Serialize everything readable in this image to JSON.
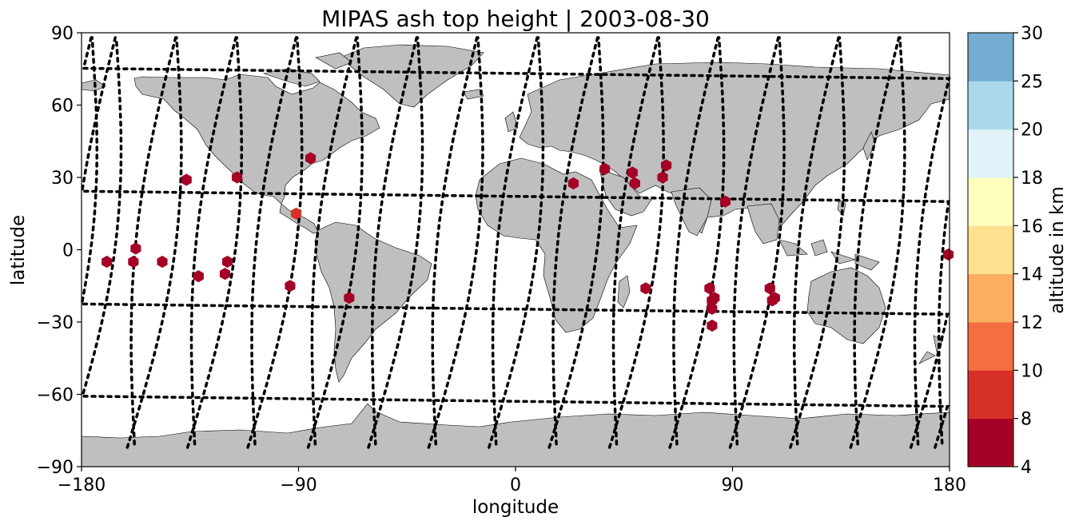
{
  "title": "MIPAS ash top height | 2003-08-30",
  "map": {
    "lon_range": [
      -180,
      180
    ],
    "lat_range": [
      -90,
      90
    ],
    "xlabel": "longitude",
    "ylabel": "latitude",
    "xticks": [
      -180,
      -90,
      0,
      90,
      180
    ],
    "yticks": [
      -90,
      -60,
      -30,
      0,
      30,
      60,
      90
    ],
    "xtick_labels": [
      "−180",
      "−90",
      "0",
      "90",
      "180"
    ],
    "ytick_labels": [
      "−90",
      "−60",
      "−30",
      "0",
      "30",
      "60",
      "90"
    ],
    "land_color": "#bfbfbf",
    "ocean_color": "#ffffff",
    "track_color": "#000000"
  },
  "colorbar": {
    "label": "altitude in km",
    "bounds": [
      4,
      8,
      10,
      12,
      14,
      16,
      18,
      20,
      25,
      30
    ],
    "tick_labels": [
      "4",
      "8",
      "10",
      "12",
      "14",
      "16",
      "18",
      "20",
      "25",
      "30"
    ],
    "colors": [
      "#a50026",
      "#d73027",
      "#f46d43",
      "#fdae61",
      "#fee090",
      "#ffffbf",
      "#e0f3f8",
      "#abd9e9",
      "#74add1",
      "#4575b4",
      "#313695"
    ]
  },
  "chart_data": {
    "type": "scatter",
    "title": "MIPAS ash top height | 2003-08-30",
    "xlabel": "longitude",
    "ylabel": "latitude",
    "xlim": [
      -180,
      180
    ],
    "ylim": [
      -90,
      90
    ],
    "colorbar_label": "altitude in km",
    "points": [
      {
        "lon": -169.5,
        "lat": -5,
        "alt": 6
      },
      {
        "lon": -158.5,
        "lat": -5,
        "alt": 6
      },
      {
        "lon": -157.5,
        "lat": 0.5,
        "alt": 6
      },
      {
        "lon": -146.5,
        "lat": -5,
        "alt": 6
      },
      {
        "lon": -136.5,
        "lat": 29,
        "alt": 6
      },
      {
        "lon": -131.5,
        "lat": -11,
        "alt": 6
      },
      {
        "lon": -120.5,
        "lat": -10,
        "alt": 6
      },
      {
        "lon": -119.5,
        "lat": -5,
        "alt": 6
      },
      {
        "lon": -115.5,
        "lat": 30,
        "alt": 6
      },
      {
        "lon": -93.5,
        "lat": -15,
        "alt": 6
      },
      {
        "lon": -91,
        "lat": 15,
        "alt": 9
      },
      {
        "lon": -85,
        "lat": 38,
        "alt": 6
      },
      {
        "lon": -69,
        "lat": -20,
        "alt": 6
      },
      {
        "lon": 24,
        "lat": 27.5,
        "alt": 6
      },
      {
        "lon": 37,
        "lat": 33.5,
        "alt": 6
      },
      {
        "lon": 48.5,
        "lat": 32,
        "alt": 6
      },
      {
        "lon": 49.5,
        "lat": 27.5,
        "alt": 6
      },
      {
        "lon": 54,
        "lat": -16,
        "alt": 6
      },
      {
        "lon": 61,
        "lat": 30,
        "alt": 6
      },
      {
        "lon": 62.5,
        "lat": 35,
        "alt": 6
      },
      {
        "lon": 80.5,
        "lat": -16,
        "alt": 6
      },
      {
        "lon": 81.5,
        "lat": -21,
        "alt": 6
      },
      {
        "lon": 82.5,
        "lat": -20,
        "alt": 6
      },
      {
        "lon": 81.5,
        "lat": -24.5,
        "alt": 6
      },
      {
        "lon": 81.5,
        "lat": -31.5,
        "alt": 6
      },
      {
        "lon": 87,
        "lat": 20,
        "alt": 6
      },
      {
        "lon": 105.5,
        "lat": -16,
        "alt": 6
      },
      {
        "lon": 106.5,
        "lat": -21,
        "alt": 6
      },
      {
        "lon": 107.5,
        "lat": -20,
        "alt": 6
      },
      {
        "lon": 179.5,
        "lat": -2,
        "alt": 6
      }
    ]
  }
}
